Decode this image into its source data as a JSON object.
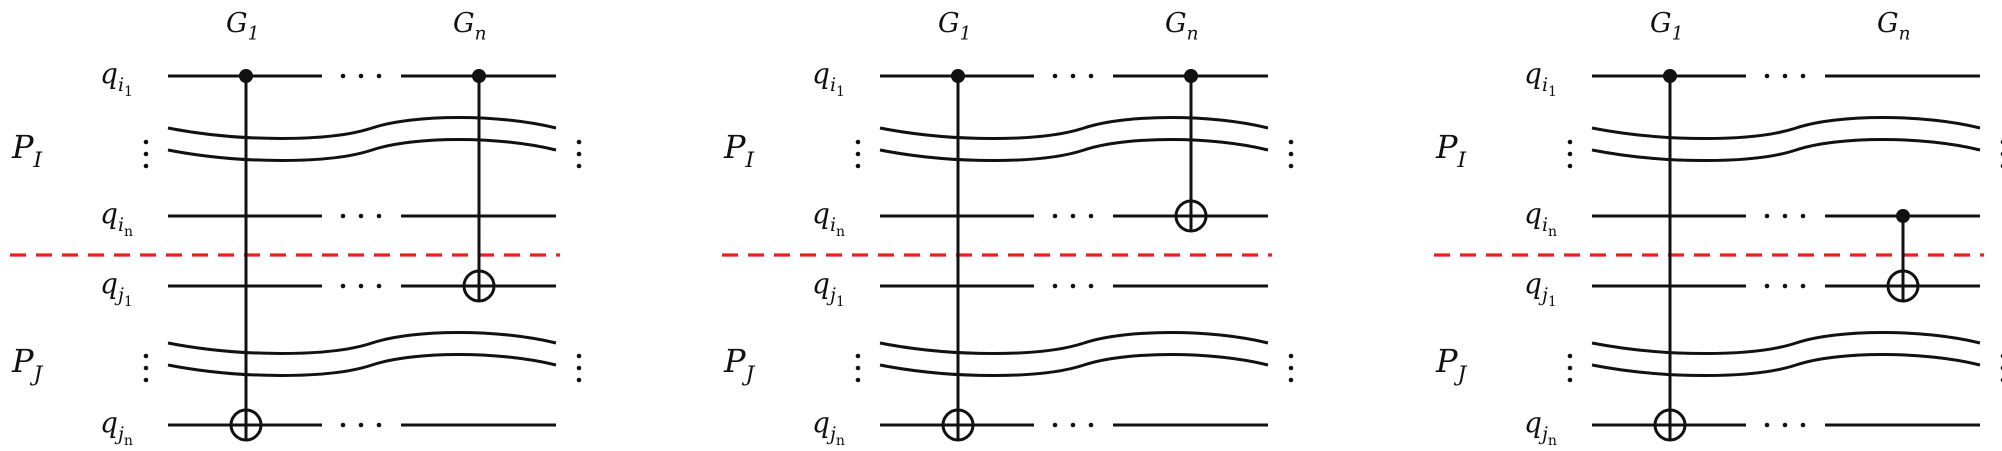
{
  "colors": {
    "ink": "#111111",
    "partition_line": "#e8231f"
  },
  "panels": [
    {
      "gate_labels": [
        {
          "base": "G",
          "sub": "1"
        },
        {
          "base": "G",
          "sub": "n"
        }
      ],
      "partitions": [
        {
          "base": "P",
          "sub": "I"
        },
        {
          "base": "P",
          "sub": "J"
        }
      ],
      "qubits": [
        {
          "base": "q",
          "sub": "i",
          "subsub": "1"
        },
        {
          "base": "q",
          "sub": "i",
          "subsub": "n"
        },
        {
          "base": "q",
          "sub": "j",
          "subsub": "1"
        },
        {
          "base": "q",
          "sub": "j",
          "subsub": "n"
        }
      ],
      "gates": [
        {
          "column": "G1",
          "control": "q_i1",
          "target": "q_jn"
        },
        {
          "column": "Gn",
          "control": "q_i1",
          "target": "q_j1"
        }
      ]
    },
    {
      "gate_labels": [
        {
          "base": "G",
          "sub": "1"
        },
        {
          "base": "G",
          "sub": "n"
        }
      ],
      "partitions": [
        {
          "base": "P",
          "sub": "I"
        },
        {
          "base": "P",
          "sub": "J"
        }
      ],
      "qubits": [
        {
          "base": "q",
          "sub": "i",
          "subsub": "1"
        },
        {
          "base": "q",
          "sub": "i",
          "subsub": "n"
        },
        {
          "base": "q",
          "sub": "j",
          "subsub": "1"
        },
        {
          "base": "q",
          "sub": "j",
          "subsub": "n"
        }
      ],
      "gates": [
        {
          "column": "G1",
          "control": "q_i1",
          "target": "q_jn"
        },
        {
          "column": "Gn",
          "control": "q_i1",
          "target": "q_in"
        }
      ]
    },
    {
      "gate_labels": [
        {
          "base": "G",
          "sub": "1"
        },
        {
          "base": "G",
          "sub": "n"
        }
      ],
      "partitions": [
        {
          "base": "P",
          "sub": "I"
        },
        {
          "base": "P",
          "sub": "J"
        }
      ],
      "qubits": [
        {
          "base": "q",
          "sub": "i",
          "subsub": "1"
        },
        {
          "base": "q",
          "sub": "i",
          "subsub": "n"
        },
        {
          "base": "q",
          "sub": "j",
          "subsub": "1"
        },
        {
          "base": "q",
          "sub": "j",
          "subsub": "n"
        }
      ],
      "gates": [
        {
          "column": "G1",
          "control": "q_i1",
          "target": "q_jn"
        },
        {
          "column": "Gn",
          "control": "q_in",
          "target": "q_j1"
        }
      ]
    }
  ]
}
